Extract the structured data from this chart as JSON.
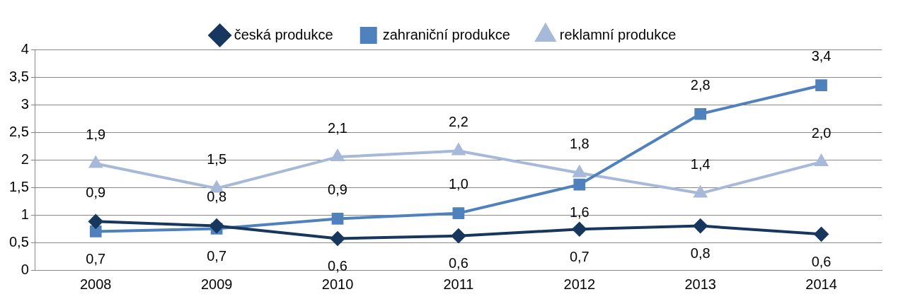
{
  "chart_data": {
    "type": "line",
    "categories": [
      "2008",
      "2009",
      "2010",
      "2011",
      "2012",
      "2013",
      "2014"
    ],
    "series": [
      {
        "name": "česká produkce",
        "color": "#17375e",
        "marker": "diamond",
        "values": [
          0.88,
          0.8,
          0.57,
          0.62,
          0.74,
          0.8,
          0.65
        ],
        "value_labels": [
          "0,9",
          "0,8",
          "0,6",
          "0,6",
          "0,7",
          "0,8",
          "0,6"
        ]
      },
      {
        "name": "zahraniční produkce",
        "color": "#4f81bd",
        "marker": "square",
        "values": [
          0.7,
          0.75,
          0.93,
          1.03,
          1.55,
          2.83,
          3.35
        ],
        "value_labels": [
          "0,7",
          "0,7",
          "0,9",
          "1,0",
          "1,6",
          "2,8",
          "3,4"
        ]
      },
      {
        "name": "reklamní produkce",
        "color": "#a7b9d9",
        "marker": "triangle",
        "values": [
          1.93,
          1.48,
          2.05,
          2.16,
          1.76,
          1.39,
          1.96
        ],
        "value_labels": [
          "1,9",
          "1,5",
          "2,1",
          "2,2",
          "1,8",
          "1,4",
          "2,0"
        ]
      }
    ],
    "ylim": [
      0,
      4
    ],
    "yticks": [
      0,
      {
        "value": 0.5,
        "label": "0,5"
      },
      1,
      {
        "value": 1.5,
        "label": "1,5"
      },
      2,
      {
        "value": 2.5,
        "label": "2,5"
      },
      3,
      {
        "value": 3.5,
        "label": "3,5"
      },
      4
    ],
    "grid": "y",
    "legend": "top",
    "line_style": "solid"
  }
}
